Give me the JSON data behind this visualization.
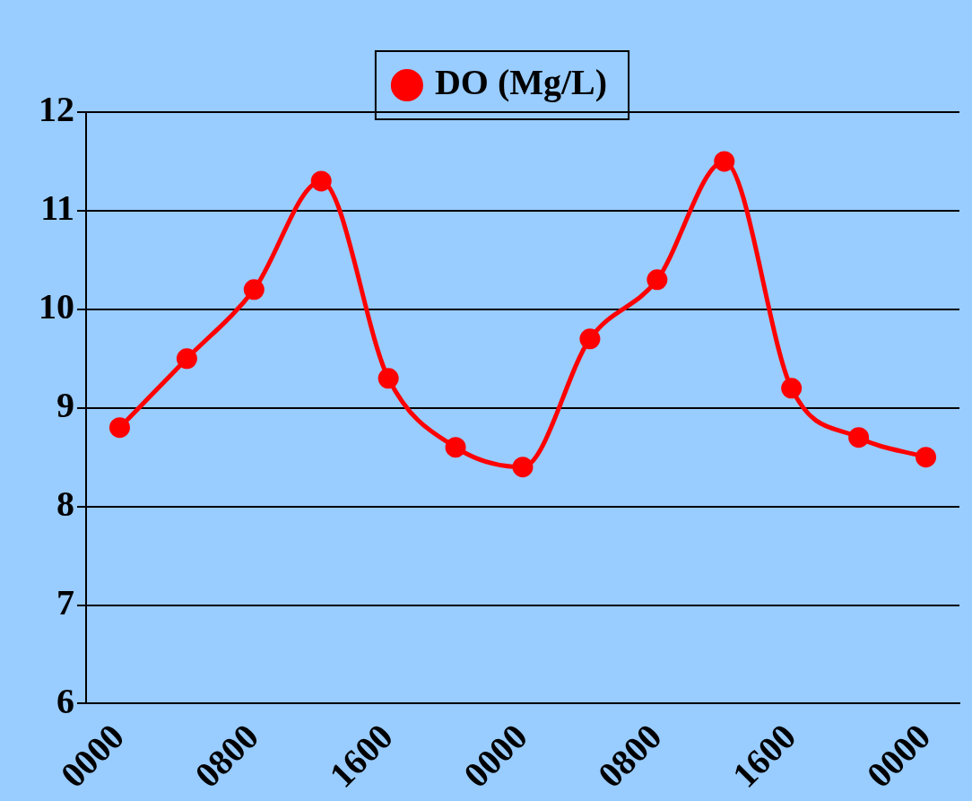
{
  "chart_data": {
    "type": "line",
    "categories": [
      "0000",
      null,
      "0800",
      null,
      "1600",
      null,
      "0000",
      null,
      "0800",
      null,
      "1600",
      null,
      "0000"
    ],
    "series": [
      {
        "name": "DO (Mg/L)",
        "color": "#ff0000",
        "values": [
          8.8,
          9.5,
          10.2,
          11.3,
          9.3,
          8.6,
          8.4,
          9.7,
          10.3,
          11.5,
          9.2,
          8.7,
          8.5
        ]
      }
    ],
    "ylim": [
      6,
      12
    ],
    "yticks": [
      6,
      7,
      8,
      9,
      10,
      11,
      12
    ],
    "grid": "y",
    "legend": "top",
    "marker": "circle",
    "line_style": "solid"
  }
}
